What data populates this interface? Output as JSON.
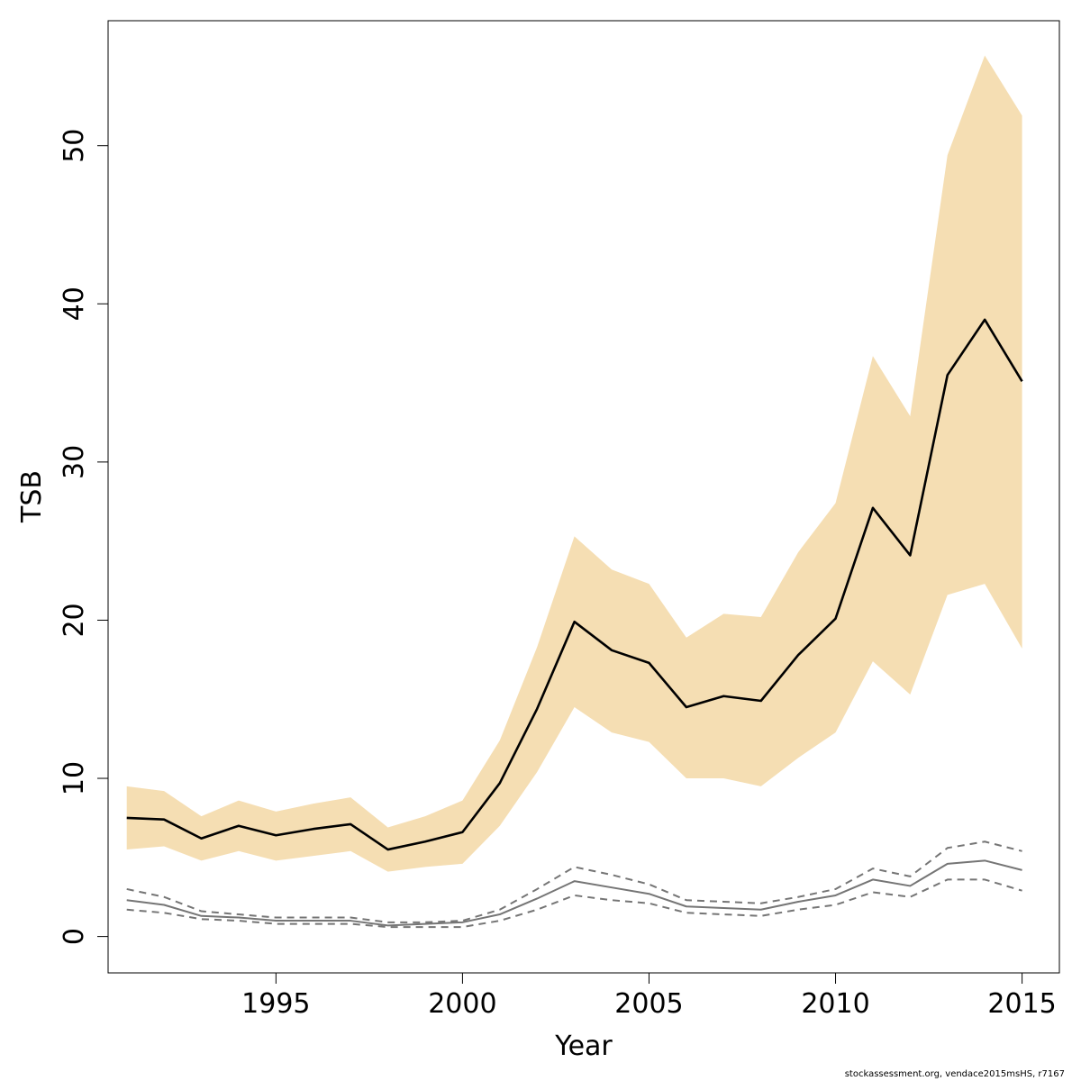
{
  "chart_data": {
    "type": "line",
    "xlabel": "Year",
    "ylabel": "TSB",
    "xlim": [
      1990.5,
      2016
    ],
    "ylim": [
      -2.3,
      57.9
    ],
    "x_ticks": [
      1995,
      2000,
      2005,
      2010,
      2015
    ],
    "y_ticks": [
      0,
      10,
      20,
      30,
      40,
      50
    ],
    "x": [
      1991,
      1992,
      1993,
      1994,
      1995,
      1996,
      1997,
      1998,
      1999,
      2000,
      2001,
      2002,
      2003,
      2004,
      2005,
      2006,
      2007,
      2008,
      2009,
      2010,
      2011,
      2012,
      2013,
      2014,
      2015
    ],
    "series": [
      {
        "role": "estimate",
        "color": "#000000",
        "values": [
          7.5,
          7.4,
          6.2,
          7.0,
          6.4,
          6.8,
          7.1,
          5.5,
          6.0,
          6.6,
          9.7,
          14.4,
          19.9,
          18.1,
          17.3,
          14.5,
          15.2,
          14.9,
          17.8,
          20.1,
          27.1,
          24.1,
          35.5,
          39.0,
          35.1
        ]
      },
      {
        "role": "upper",
        "values": [
          9.5,
          9.2,
          7.6,
          8.6,
          7.9,
          8.4,
          8.8,
          6.9,
          7.6,
          8.6,
          12.4,
          18.3,
          25.3,
          23.2,
          22.3,
          18.9,
          20.4,
          20.2,
          24.3,
          27.4,
          36.7,
          32.9,
          49.4,
          55.7,
          51.9
        ]
      },
      {
        "role": "lower",
        "values": [
          5.5,
          5.7,
          4.8,
          5.4,
          4.8,
          5.1,
          5.4,
          4.1,
          4.4,
          4.6,
          7.0,
          10.4,
          14.5,
          12.9,
          12.3,
          10.0,
          10.0,
          9.5,
          11.3,
          12.9,
          17.4,
          15.3,
          21.6,
          22.3,
          18.2
        ]
      },
      {
        "role": "secondary-estimate",
        "color": "#757575",
        "values": [
          2.3,
          2.0,
          1.3,
          1.2,
          1.0,
          1.0,
          1.0,
          0.7,
          0.8,
          0.9,
          1.4,
          2.4,
          3.5,
          3.1,
          2.7,
          1.9,
          1.8,
          1.7,
          2.2,
          2.6,
          3.6,
          3.2,
          4.6,
          4.8,
          4.2
        ]
      },
      {
        "role": "secondary-upper",
        "color": "#757575",
        "values": [
          3.0,
          2.5,
          1.6,
          1.4,
          1.2,
          1.2,
          1.2,
          0.9,
          0.9,
          1.0,
          1.7,
          3.0,
          4.4,
          3.9,
          3.3,
          2.3,
          2.2,
          2.1,
          2.5,
          3.0,
          4.3,
          3.8,
          5.6,
          6.0,
          5.4
        ]
      },
      {
        "role": "secondary-lower",
        "color": "#757575",
        "values": [
          1.7,
          1.5,
          1.1,
          1.0,
          0.8,
          0.8,
          0.8,
          0.6,
          0.6,
          0.6,
          1.0,
          1.7,
          2.6,
          2.3,
          2.1,
          1.5,
          1.4,
          1.3,
          1.7,
          2.0,
          2.8,
          2.5,
          3.6,
          3.6,
          2.9
        ]
      }
    ],
    "band_color": "#F5DEB3",
    "grid": false,
    "legend": "none"
  },
  "footer_text": "stockassessment.org, vendace2015msHS, r7167"
}
